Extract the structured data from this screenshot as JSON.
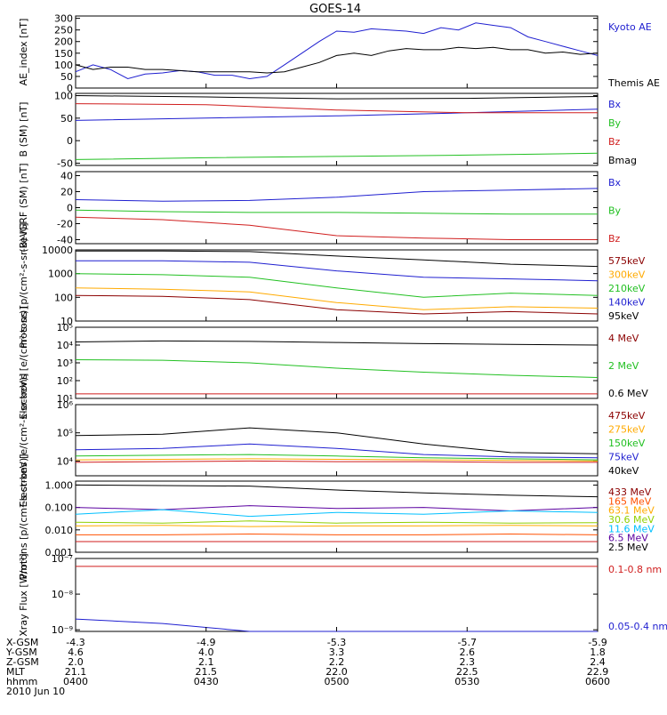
{
  "title": "GOES-14",
  "colors": {
    "black": "#000000",
    "blue": "#1f1fd0",
    "green": "#22c022",
    "red": "#d01e1e",
    "orange": "#ffaa00",
    "darkred": "#8b0000",
    "purple": "#5a00a0",
    "cyan": "#00c0ff",
    "greenyellow": "#90d000",
    "orangered": "#ff5000",
    "magenta": "#d000d0"
  },
  "chart_data": [
    {
      "type": "line",
      "ylabel": "AE_index [nT]",
      "y_ticks": [
        "300",
        "250",
        "200",
        "150",
        "100",
        "50",
        "0"
      ],
      "legend": [
        {
          "name": "Kyoto AE",
          "color": "blue"
        },
        {
          "name": "Themis AE",
          "color": "black"
        }
      ],
      "ylim": [
        0,
        310
      ],
      "x": [
        0,
        4,
        8,
        12,
        16,
        20,
        24,
        28,
        32,
        36,
        40,
        44,
        48,
        52,
        56,
        60,
        64,
        68,
        72,
        76,
        80,
        84,
        88,
        92,
        96,
        100,
        104,
        108,
        112,
        116,
        120
      ],
      "series": [
        {
          "name": "Kyoto AE",
          "color": "blue",
          "values": [
            70,
            100,
            80,
            40,
            60,
            65,
            75,
            70,
            55,
            55,
            40,
            50,
            100,
            150,
            200,
            245,
            240,
            255,
            250,
            245,
            235,
            260,
            250,
            280,
            270,
            260,
            220,
            200,
            180,
            160,
            140
          ]
        },
        {
          "name": "Themis AE",
          "color": "black",
          "values": [
            100,
            80,
            90,
            90,
            80,
            80,
            75,
            70,
            70,
            70,
            70,
            65,
            70,
            90,
            110,
            140,
            150,
            140,
            160,
            170,
            165,
            165,
            175,
            170,
            175,
            165,
            165,
            150,
            155,
            145,
            150
          ]
        }
      ]
    },
    {
      "type": "line",
      "ylabel": "B (SM) [nT]",
      "y_ticks": [
        "100",
        "50",
        "0",
        "-50"
      ],
      "legend": [
        {
          "name": "Bx",
          "color": "blue"
        },
        {
          "name": "By",
          "color": "green"
        },
        {
          "name": "Bz",
          "color": "red"
        },
        {
          "name": "Bmag",
          "color": "black"
        }
      ],
      "ylim": [
        -55,
        105
      ],
      "x": [
        0,
        30,
        60,
        90,
        120
      ],
      "series": [
        {
          "name": "Bx",
          "color": "blue",
          "values": [
            45,
            50,
            55,
            62,
            70
          ]
        },
        {
          "name": "By",
          "color": "green",
          "values": [
            -42,
            -38,
            -35,
            -32,
            -28
          ]
        },
        {
          "name": "Bz",
          "color": "red",
          "values": [
            82,
            80,
            68,
            62,
            62
          ]
        },
        {
          "name": "Bmag",
          "color": "black",
          "values": [
            100,
            97,
            93,
            94,
            98
          ]
        }
      ]
    },
    {
      "type": "line",
      "ylabel": "(B)-IGRF (SM) [nT]",
      "y_ticks": [
        "40",
        "20",
        "0",
        "-20",
        "-40"
      ],
      "legend": [
        {
          "name": "Bx",
          "color": "blue"
        },
        {
          "name": "By",
          "color": "green"
        },
        {
          "name": "Bz",
          "color": "red"
        }
      ],
      "ylim": [
        -45,
        45
      ],
      "x": [
        0,
        20,
        40,
        60,
        80,
        100,
        120
      ],
      "series": [
        {
          "name": "Bx",
          "color": "blue",
          "values": [
            10,
            8,
            9,
            13,
            20,
            22,
            24
          ]
        },
        {
          "name": "By",
          "color": "green",
          "values": [
            -3,
            -5,
            -6,
            -6,
            -7,
            -8,
            -8
          ]
        },
        {
          "name": "Bz",
          "color": "red",
          "values": [
            -12,
            -15,
            -22,
            -35,
            -38,
            -40,
            -40
          ]
        }
      ]
    },
    {
      "type": "line",
      "ylabel": "Protons [p/(cm²-s-sr-keV)]",
      "y_ticks": [
        "10000",
        "1000",
        "100",
        "10"
      ],
      "log_scale": true,
      "legend": [
        {
          "name": "575keV",
          "color": "darkred"
        },
        {
          "name": "300keV",
          "color": "orange"
        },
        {
          "name": "210keV",
          "color": "green"
        },
        {
          "name": "140keV",
          "color": "blue"
        },
        {
          "name": "95keV",
          "color": "black"
        }
      ],
      "ylim": [
        10,
        10000
      ],
      "x": [
        0,
        20,
        40,
        60,
        80,
        100,
        120
      ],
      "series": [
        {
          "name": "575keV",
          "color": "black",
          "values": [
            9000,
            9000,
            8500,
            5500,
            3800,
            2500,
            2000
          ]
        },
        {
          "name": "300keV",
          "color": "blue",
          "values": [
            3500,
            3500,
            3000,
            1300,
            700,
            600,
            500
          ]
        },
        {
          "name": "210keV",
          "color": "green",
          "values": [
            1000,
            900,
            700,
            250,
            100,
            150,
            120
          ]
        },
        {
          "name": "140keV",
          "color": "orange",
          "values": [
            250,
            220,
            170,
            60,
            30,
            40,
            35
          ]
        },
        {
          "name": "95keV",
          "color": "darkred",
          "values": [
            120,
            110,
            80,
            30,
            20,
            25,
            20
          ]
        }
      ]
    },
    {
      "type": "line",
      "ylabel": "Electrons [e/(cm²-s-sr)]",
      "y_ticks": [
        "10⁵",
        "10⁴",
        "10³",
        "10²",
        "10¹"
      ],
      "log_scale": true,
      "legend": [
        {
          "name": "4 MeV",
          "color": "darkred"
        },
        {
          "name": "2 MeV",
          "color": "green"
        },
        {
          "name": "0.6 MeV",
          "color": "black"
        }
      ],
      "ylim": [
        10,
        100000
      ],
      "x": [
        0,
        20,
        40,
        60,
        80,
        100,
        120
      ],
      "series": [
        {
          "name": "0.6 MeV",
          "color": "black",
          "values": [
            15000,
            17000,
            16000,
            14000,
            12000,
            11000,
            10000
          ]
        },
        {
          "name": "2 MeV",
          "color": "green",
          "values": [
            1500,
            1400,
            1000,
            500,
            300,
            200,
            150
          ]
        },
        {
          "name": "4 MeV",
          "color": "red",
          "values": [
            18,
            18,
            18,
            18,
            18,
            18,
            18
          ]
        }
      ]
    },
    {
      "type": "line",
      "ylabel": "Electrons [e/(cm²-s-sr-keV)]",
      "y_ticks": [
        "10⁶",
        "10⁵",
        "10⁴"
      ],
      "log_scale": true,
      "legend": [
        {
          "name": "475keV",
          "color": "darkred"
        },
        {
          "name": "275keV",
          "color": "orange"
        },
        {
          "name": "150keV",
          "color": "green"
        },
        {
          "name": "75keV",
          "color": "blue"
        },
        {
          "name": "40keV",
          "color": "black"
        }
      ],
      "ylim": [
        3000,
        1000000
      ],
      "x": [
        0,
        20,
        40,
        60,
        80,
        100,
        120
      ],
      "series": [
        {
          "name": "475keV",
          "color": "black",
          "values": [
            80000,
            90000,
            150000,
            100000,
            40000,
            20000,
            18000
          ]
        },
        {
          "name": "275keV",
          "color": "blue",
          "values": [
            25000,
            28000,
            40000,
            28000,
            17000,
            14000,
            13000
          ]
        },
        {
          "name": "150keV",
          "color": "green",
          "values": [
            15000,
            16000,
            17000,
            15000,
            13000,
            12000,
            11000
          ]
        },
        {
          "name": "75keV",
          "color": "orange",
          "values": [
            11000,
            11500,
            12000,
            11500,
            11000,
            10500,
            10000
          ]
        },
        {
          "name": "40keV",
          "color": "red",
          "values": [
            9000,
            9500,
            10000,
            9500,
            9500,
            9000,
            9000
          ]
        }
      ]
    },
    {
      "type": "line",
      "ylabel": "Protons [p/(cm²-s-sr-keV)]",
      "y_ticks": [
        "1.000",
        "0.100",
        "0.010",
        "0.001"
      ],
      "log_scale": true,
      "legend": [
        {
          "name": "433 MeV",
          "color": "darkred"
        },
        {
          "name": "165 MeV",
          "color": "orangered"
        },
        {
          "name": "63.1 MeV",
          "color": "orange"
        },
        {
          "name": "30.6 MeV",
          "color": "greenyellow"
        },
        {
          "name": "11.6 MeV",
          "color": "cyan"
        },
        {
          "name": "6.5 MeV",
          "color": "purple"
        },
        {
          "name": "2.5 MeV",
          "color": "black"
        }
      ],
      "ylim": [
        0.001,
        1.5
      ],
      "x": [
        0,
        20,
        40,
        60,
        80,
        100,
        120
      ],
      "series": [
        {
          "name": "433 MeV",
          "color": "black",
          "values": [
            1.0,
            0.95,
            0.9,
            0.6,
            0.45,
            0.35,
            0.3
          ]
        },
        {
          "name": "165 MeV",
          "color": "purple",
          "values": [
            0.1,
            0.08,
            0.12,
            0.09,
            0.1,
            0.07,
            0.1
          ]
        },
        {
          "name": "63.1 MeV",
          "color": "cyan",
          "values": [
            0.05,
            0.08,
            0.04,
            0.06,
            0.05,
            0.07,
            0.06
          ]
        },
        {
          "name": "30.6 MeV",
          "color": "greenyellow",
          "values": [
            0.022,
            0.02,
            0.025,
            0.02,
            0.022,
            0.02,
            0.021
          ]
        },
        {
          "name": "11.6 MeV",
          "color": "orange",
          "values": [
            0.015,
            0.016,
            0.014,
            0.015,
            0.015,
            0.016,
            0.015
          ]
        },
        {
          "name": "6.5 MeV",
          "color": "orangered",
          "values": [
            0.006,
            0.006,
            0.0065,
            0.006,
            0.006,
            0.0065,
            0.006
          ]
        },
        {
          "name": "2.5 MeV",
          "color": "red",
          "values": [
            0.003,
            0.003,
            0.003,
            0.003,
            0.003,
            0.003,
            0.003
          ]
        }
      ]
    },
    {
      "type": "line",
      "ylabel": "Xray Flux [W/m²]",
      "y_ticks": [
        "10⁻⁷",
        "10⁻⁸",
        "10⁻⁹"
      ],
      "log_scale": true,
      "legend": [
        {
          "name": "0.1-0.8 nm",
          "color": "red"
        },
        {
          "name": "0.05-0.4 nm",
          "color": "blue"
        }
      ],
      "ylim": [
        9e-10,
        1e-07
      ],
      "x": [
        0,
        20,
        40,
        60,
        80,
        100,
        120
      ],
      "series": [
        {
          "name": "0.1-0.8 nm",
          "color": "red",
          "values": [
            6e-08,
            6e-08,
            6e-08,
            6e-08,
            6e-08,
            6e-08,
            6e-08
          ]
        },
        {
          "name": "0.05-0.4 nm",
          "color": "blue",
          "values": [
            2e-09,
            1.5e-09,
            9e-10,
            9e-10,
            9e-10,
            9e-10,
            9e-10
          ]
        }
      ]
    }
  ],
  "x_axis": {
    "row_labels": [
      "X-GSM",
      "Y-GSM",
      "Z-GSM",
      "MLT",
      "hhmm"
    ],
    "columns": [
      [
        "-4.3",
        "4.6",
        "2.0",
        "21.1",
        "0400"
      ],
      [
        "-4.9",
        "4.0",
        "2.1",
        "21.5",
        "0430"
      ],
      [
        "-5.3",
        "3.3",
        "2.2",
        "22.0",
        "0500"
      ],
      [
        "-5.7",
        "2.6",
        "2.3",
        "22.5",
        "0530"
      ],
      [
        "-5.9",
        "1.8",
        "2.4",
        "22.9",
        "0600"
      ]
    ],
    "date": "2010 Jun 10"
  }
}
